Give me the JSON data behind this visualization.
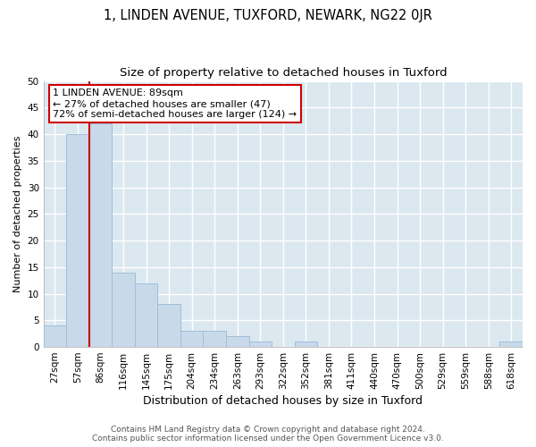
{
  "title": "1, LINDEN AVENUE, TUXFORD, NEWARK, NG22 0JR",
  "subtitle": "Size of property relative to detached houses in Tuxford",
  "xlabel": "Distribution of detached houses by size in Tuxford",
  "ylabel": "Number of detached properties",
  "bar_labels": [
    "27sqm",
    "57sqm",
    "86sqm",
    "116sqm",
    "145sqm",
    "175sqm",
    "204sqm",
    "234sqm",
    "263sqm",
    "293sqm",
    "322sqm",
    "352sqm",
    "381sqm",
    "411sqm",
    "440sqm",
    "470sqm",
    "500sqm",
    "529sqm",
    "559sqm",
    "588sqm",
    "618sqm"
  ],
  "bar_values": [
    4,
    40,
    42,
    14,
    12,
    8,
    3,
    3,
    2,
    1,
    0,
    1,
    0,
    0,
    0,
    0,
    0,
    0,
    0,
    0,
    1
  ],
  "bar_color": "#c8daea",
  "bar_edge_color": "#a0bed8",
  "property_line_color": "#cc0000",
  "annotation_line1": "1 LINDEN AVENUE: 89sqm",
  "annotation_line2": "← 27% of detached houses are smaller (47)",
  "annotation_line3": "72% of semi-detached houses are larger (124) →",
  "annotation_box_facecolor": "#ffffff",
  "annotation_box_edgecolor": "#cc0000",
  "footer1": "Contains HM Land Registry data © Crown copyright and database right 2024.",
  "footer2": "Contains public sector information licensed under the Open Government Licence v3.0.",
  "ylim": [
    0,
    50
  ],
  "yticks": [
    0,
    5,
    10,
    15,
    20,
    25,
    30,
    35,
    40,
    45,
    50
  ],
  "plot_bg_color": "#dce8f0",
  "fig_bg_color": "#ffffff",
  "grid_color": "#ffffff",
  "title_fontsize": 10.5,
  "subtitle_fontsize": 9.5,
  "ylabel_fontsize": 8,
  "xlabel_fontsize": 9,
  "tick_fontsize": 7.5,
  "footer_fontsize": 6.5,
  "annotation_fontsize": 8
}
